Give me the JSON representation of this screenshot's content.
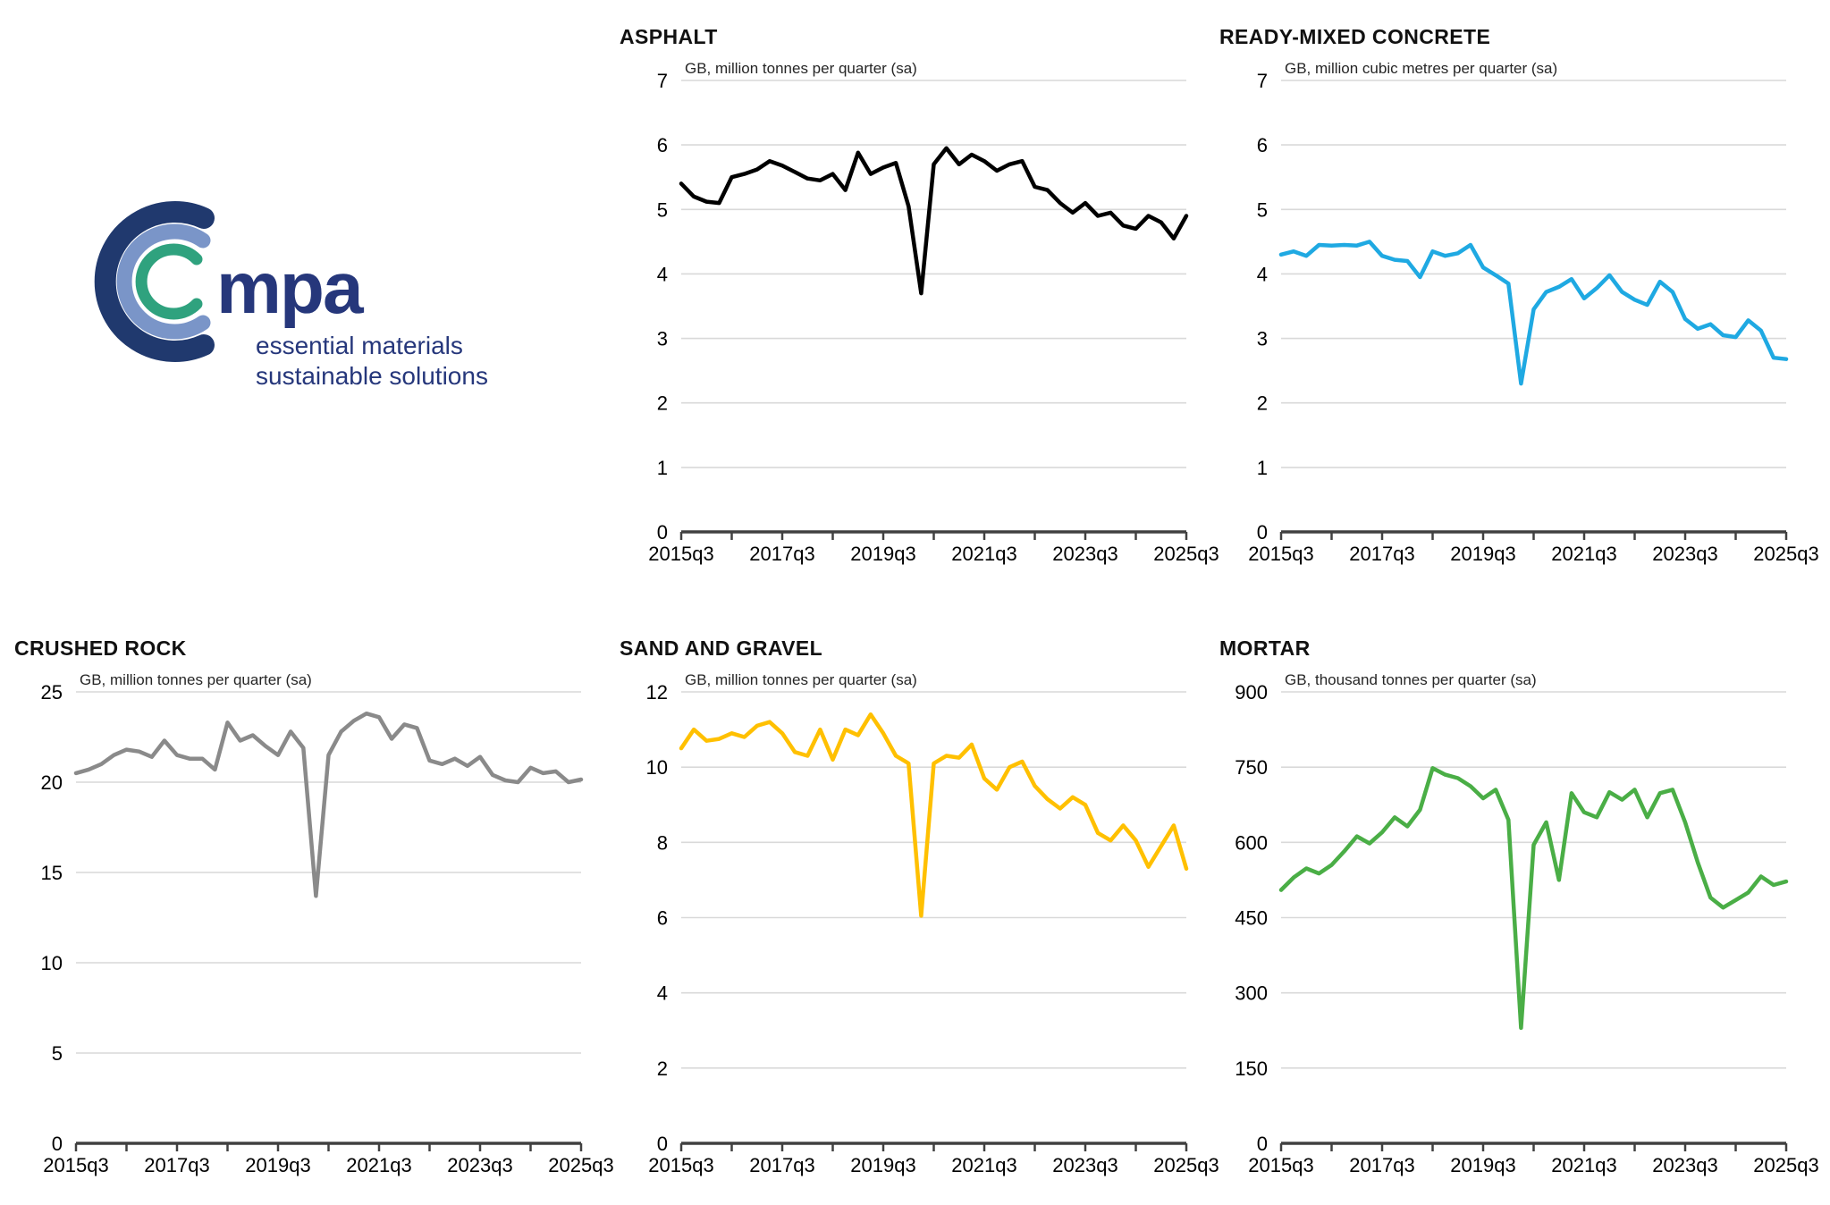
{
  "logo": {
    "brand": "mpa",
    "tagline_line1": "essential materials",
    "tagline_line2": "sustainable solutions",
    "brand_color": "#26377b",
    "arc_colors": {
      "outer": "#20396e",
      "middle": "#7a95c8",
      "inner": "#2fa27e"
    }
  },
  "chart_meta": {
    "grid_color": "#d9d9d9",
    "axis_color": "#404040",
    "text_color": "#000000",
    "background": "#ffffff",
    "frequency": "quarterly",
    "quarters": [
      "2015q3",
      "2015q4",
      "2016q1",
      "2016q2",
      "2016q3",
      "2016q4",
      "2017q1",
      "2017q2",
      "2017q3",
      "2017q4",
      "2018q1",
      "2018q2",
      "2018q3",
      "2018q4",
      "2019q1",
      "2019q2",
      "2019q3",
      "2019q4",
      "2020q1",
      "2020q2",
      "2020q3",
      "2020q4",
      "2021q1",
      "2021q2",
      "2021q3",
      "2021q4",
      "2022q1",
      "2022q2",
      "2022q3",
      "2022q4",
      "2023q1",
      "2023q2",
      "2023q3",
      "2023q4",
      "2024q1",
      "2024q2",
      "2024q3",
      "2024q4",
      "2025q1",
      "2025q2",
      "2025q3"
    ]
  },
  "chart_data": [
    {
      "type": "line",
      "name": "asphalt",
      "title": "ASPHALT",
      "ylabel": "GB, million tonnes per quarter (sa)",
      "color": "#000000",
      "ylim": [
        0,
        7
      ],
      "ystep": 1,
      "grid": true,
      "legend": "none",
      "x_ticklabels": [
        "2015q3",
        "2017q3",
        "2019q3",
        "2021q3",
        "2023q3",
        "2025q3"
      ],
      "values": [
        5.4,
        5.2,
        5.12,
        5.1,
        5.5,
        5.55,
        5.62,
        5.75,
        5.68,
        5.58,
        5.48,
        5.45,
        5.55,
        5.3,
        5.88,
        5.55,
        5.65,
        5.72,
        5.05,
        3.7,
        5.7,
        5.95,
        5.7,
        5.85,
        5.75,
        5.6,
        5.7,
        5.75,
        5.35,
        5.3,
        5.1,
        4.95,
        5.1,
        4.9,
        4.95,
        4.75,
        4.7,
        4.9,
        4.8,
        4.55,
        4.9
      ]
    },
    {
      "type": "line",
      "name": "ready-mixed-concrete",
      "title": "READY-MIXED CONCRETE",
      "ylabel": "GB, million cubic metres per quarter (sa)",
      "color": "#1fa9e2",
      "ylim": [
        0,
        7
      ],
      "ystep": 1,
      "grid": true,
      "legend": "none",
      "x_ticklabels": [
        "2015q3",
        "2017q3",
        "2019q3",
        "2021q3",
        "2023q3",
        "2025q3"
      ],
      "values": [
        4.3,
        4.35,
        4.28,
        4.45,
        4.44,
        4.45,
        4.44,
        4.5,
        4.28,
        4.22,
        4.2,
        3.95,
        4.35,
        4.28,
        4.32,
        4.45,
        4.1,
        3.98,
        3.85,
        2.3,
        3.45,
        3.72,
        3.8,
        3.92,
        3.62,
        3.78,
        3.98,
        3.72,
        3.6,
        3.52,
        3.88,
        3.72,
        3.3,
        3.15,
        3.22,
        3.05,
        3.02,
        3.28,
        3.12,
        2.7,
        2.68
      ]
    },
    {
      "type": "line",
      "name": "crushed-rock",
      "title": "CRUSHED ROCK",
      "ylabel": "GB, million tonnes per quarter (sa)",
      "color": "#8a8a8a",
      "ylim": [
        0,
        25
      ],
      "ystep": 5,
      "grid": true,
      "legend": "none",
      "x_ticklabels": [
        "2015q3",
        "2017q3",
        "2019q3",
        "2021q3",
        "2023q3",
        "2025q3"
      ],
      "values": [
        20.5,
        20.7,
        21.0,
        21.5,
        21.8,
        21.7,
        21.4,
        22.3,
        21.5,
        21.3,
        21.3,
        20.7,
        23.3,
        22.3,
        22.6,
        22.0,
        21.5,
        22.8,
        21.9,
        13.7,
        21.5,
        22.8,
        23.4,
        23.8,
        23.6,
        22.4,
        23.2,
        23.0,
        21.2,
        21.0,
        21.3,
        20.9,
        21.4,
        20.4,
        20.1,
        20.0,
        20.8,
        20.5,
        20.6,
        20.0,
        20.15
      ]
    },
    {
      "type": "line",
      "name": "sand-and-gravel",
      "title": "SAND AND GRAVEL",
      "ylabel": "GB, million tonnes per quarter (sa)",
      "color": "#ffc000",
      "ylim": [
        0,
        12
      ],
      "ystep": 2,
      "grid": true,
      "legend": "none",
      "x_ticklabels": [
        "2015q3",
        "2017q3",
        "2019q3",
        "2021q3",
        "2023q3",
        "2025q3"
      ],
      "values": [
        10.5,
        11.0,
        10.7,
        10.75,
        10.9,
        10.8,
        11.1,
        11.2,
        10.9,
        10.4,
        10.3,
        11.0,
        10.2,
        11.0,
        10.85,
        11.4,
        10.9,
        10.3,
        10.1,
        6.05,
        10.1,
        10.3,
        10.25,
        10.6,
        9.7,
        9.4,
        10.0,
        10.15,
        9.5,
        9.15,
        8.9,
        9.2,
        9.0,
        8.25,
        8.05,
        8.45,
        8.05,
        7.35,
        7.9,
        8.45,
        7.3
      ]
    },
    {
      "type": "line",
      "name": "mortar",
      "title": "MORTAR",
      "ylabel": "GB, thousand tonnes per quarter (sa)",
      "color": "#4aae46",
      "ylim": [
        0,
        900
      ],
      "ystep": 150,
      "grid": true,
      "legend": "none",
      "x_ticklabels": [
        "2015q3",
        "2017q3",
        "2019q3",
        "2021q3",
        "2023q3",
        "2025q3"
      ],
      "values": [
        505,
        530,
        548,
        538,
        555,
        582,
        612,
        598,
        620,
        650,
        632,
        665,
        748,
        735,
        728,
        712,
        688,
        705,
        645,
        230,
        595,
        640,
        525,
        698,
        660,
        650,
        700,
        685,
        705,
        650,
        698,
        705,
        640,
        560,
        490,
        470,
        485,
        500,
        532,
        515,
        522
      ]
    }
  ]
}
